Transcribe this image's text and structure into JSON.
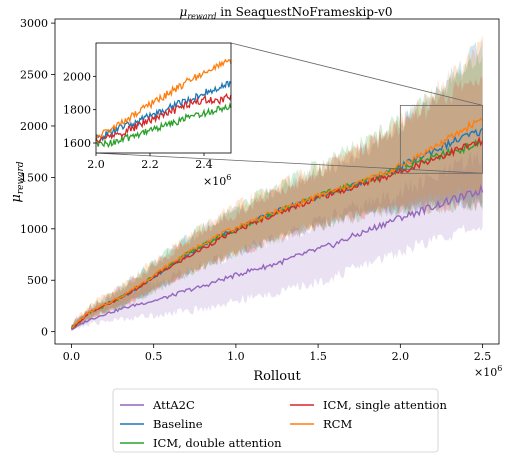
{
  "chart_data": {
    "type": "line",
    "title_symbol": "μ",
    "title_symbol_sub": "reward",
    "title_rest": " in SeaquestNoFrameskip-v0",
    "xlabel": "Rollout",
    "ylabel_symbol": "μ",
    "ylabel_sub": "reward",
    "x_multiplier_base": "×10",
    "x_multiplier_exp": "6",
    "xlim": [
      -0.1,
      2.6
    ],
    "ylim": [
      -120,
      3040
    ],
    "xticks": [
      0.0,
      0.5,
      1.0,
      1.5,
      2.0,
      2.5
    ],
    "xtick_labels": [
      "0.0",
      "0.5",
      "1.0",
      "1.5",
      "2.0",
      "2.5"
    ],
    "yticks": [
      0,
      500,
      1000,
      1500,
      2000,
      2500,
      3000
    ],
    "ytick_labels": [
      "0",
      "500",
      "1000",
      "1500",
      "2000",
      "2500",
      "3000"
    ],
    "grid": false,
    "legend_position": "below",
    "x": [
      0.0,
      0.1,
      0.2,
      0.3,
      0.4,
      0.5,
      0.6,
      0.7,
      0.8,
      0.9,
      1.0,
      1.1,
      1.2,
      1.3,
      1.4,
      1.5,
      1.6,
      1.7,
      1.8,
      1.9,
      2.0,
      2.1,
      2.2,
      2.3,
      2.4,
      2.5
    ],
    "series": [
      {
        "name": "AttA2C",
        "color": "#9467bd",
        "values": [
          20,
          110,
          170,
          220,
          265,
          300,
          345,
          400,
          440,
          500,
          550,
          600,
          640,
          690,
          750,
          800,
          850,
          920,
          980,
          1050,
          1110,
          1160,
          1220,
          1270,
          1320,
          1380
        ],
        "lower": [
          10,
          70,
          100,
          120,
          140,
          160,
          180,
          200,
          220,
          260,
          300,
          330,
          360,
          400,
          440,
          480,
          540,
          600,
          660,
          720,
          780,
          840,
          880,
          940,
          980,
          1020
        ],
        "upper": [
          40,
          190,
          260,
          330,
          400,
          470,
          520,
          580,
          640,
          700,
          760,
          820,
          880,
          940,
          1000,
          1060,
          1120,
          1180,
          1240,
          1300,
          1360,
          1420,
          1480,
          1560,
          1640,
          1720
        ]
      },
      {
        "name": "Baseline",
        "color": "#1f77b4",
        "values": [
          40,
          180,
          260,
          330,
          420,
          530,
          640,
          740,
          840,
          930,
          1000,
          1070,
          1140,
          1200,
          1260,
          1310,
          1360,
          1410,
          1460,
          1520,
          1600,
          1680,
          1760,
          1830,
          1900,
          1950
        ],
        "lower": [
          20,
          130,
          190,
          250,
          320,
          400,
          480,
          560,
          630,
          700,
          760,
          820,
          880,
          930,
          980,
          1030,
          1080,
          1120,
          1160,
          1180,
          1200,
          1210,
          1220,
          1230,
          1240,
          1250
        ],
        "upper": [
          70,
          240,
          330,
          430,
          540,
          660,
          780,
          900,
          1000,
          1100,
          1180,
          1260,
          1330,
          1400,
          1470,
          1540,
          1610,
          1680,
          1780,
          1900,
          2020,
          2150,
          2300,
          2460,
          2620,
          2800
        ]
      },
      {
        "name": "ICM, double attention",
        "color": "#2ca02c",
        "values": [
          30,
          170,
          250,
          330,
          430,
          540,
          650,
          750,
          840,
          920,
          990,
          1060,
          1130,
          1200,
          1260,
          1320,
          1370,
          1420,
          1470,
          1530,
          1590,
          1640,
          1690,
          1740,
          1790,
          1840
        ],
        "lower": [
          15,
          120,
          180,
          240,
          310,
          390,
          470,
          550,
          620,
          690,
          750,
          810,
          870,
          920,
          970,
          1020,
          1060,
          1100,
          1140,
          1170,
          1190,
          1200,
          1210,
          1220,
          1230,
          1240
        ],
        "upper": [
          60,
          230,
          320,
          430,
          550,
          670,
          790,
          900,
          1010,
          1110,
          1200,
          1290,
          1370,
          1450,
          1530,
          1610,
          1690,
          1770,
          1860,
          1960,
          2060,
          2170,
          2290,
          2410,
          2530,
          2640
        ]
      },
      {
        "name": "ICM, single attention",
        "color": "#d62728",
        "values": [
          30,
          170,
          250,
          330,
          420,
          530,
          630,
          720,
          810,
          900,
          980,
          1050,
          1120,
          1180,
          1240,
          1300,
          1350,
          1400,
          1450,
          1500,
          1560,
          1620,
          1680,
          1740,
          1800,
          1850
        ],
        "lower": [
          15,
          120,
          180,
          240,
          310,
          390,
          470,
          550,
          620,
          690,
          750,
          810,
          870,
          920,
          970,
          1020,
          1060,
          1100,
          1140,
          1170,
          1190,
          1200,
          1210,
          1220,
          1230,
          1240
        ],
        "upper": [
          60,
          230,
          320,
          420,
          530,
          650,
          760,
          870,
          970,
          1070,
          1160,
          1240,
          1320,
          1400,
          1480,
          1560,
          1640,
          1720,
          1810,
          1900,
          2000,
          2100,
          2200,
          2300,
          2400,
          2500
        ]
      },
      {
        "name": "RCM",
        "color": "#ff7f0e",
        "values": [
          40,
          180,
          260,
          340,
          440,
          550,
          660,
          760,
          860,
          940,
          1010,
          1080,
          1140,
          1200,
          1260,
          1320,
          1370,
          1420,
          1480,
          1540,
          1610,
          1700,
          1790,
          1880,
          1980,
          2080
        ],
        "lower": [
          20,
          130,
          190,
          250,
          330,
          410,
          490,
          570,
          640,
          710,
          770,
          830,
          890,
          940,
          990,
          1040,
          1090,
          1130,
          1170,
          1200,
          1230,
          1260,
          1290,
          1320,
          1350,
          1380
        ],
        "upper": [
          70,
          250,
          340,
          440,
          560,
          680,
          800,
          910,
          1020,
          1120,
          1210,
          1290,
          1370,
          1440,
          1510,
          1580,
          1650,
          1730,
          1820,
          1930,
          2050,
          2180,
          2330,
          2480,
          2650,
          2820
        ]
      }
    ],
    "inset": {
      "xlim": [
        2.0,
        2.5
      ],
      "ylim": [
        1540,
        2200
      ],
      "xticks": [
        2.0,
        2.2,
        2.4
      ],
      "xtick_labels": [
        "2.0",
        "2.2",
        "2.4"
      ],
      "yticks": [
        1600,
        1800,
        2000
      ],
      "ytick_labels": [
        "1600",
        "1800",
        "2000"
      ],
      "x_multiplier_base": "×10",
      "x_multiplier_exp": "6",
      "x": [
        2.0,
        2.05,
        2.1,
        2.15,
        2.2,
        2.25,
        2.3,
        2.35,
        2.4,
        2.45,
        2.5
      ],
      "series": [
        {
          "name": "Baseline",
          "color": "#1f77b4",
          "values": [
            1620,
            1660,
            1700,
            1720,
            1770,
            1790,
            1840,
            1860,
            1900,
            1920,
            1960
          ]
        },
        {
          "name": "ICM, double attention",
          "color": "#2ca02c",
          "values": [
            1590,
            1600,
            1620,
            1650,
            1680,
            1700,
            1730,
            1760,
            1780,
            1800,
            1830
          ]
        },
        {
          "name": "ICM, single attention",
          "color": "#d62728",
          "values": [
            1610,
            1640,
            1660,
            1700,
            1740,
            1770,
            1800,
            1840,
            1860,
            1850,
            1880
          ]
        },
        {
          "name": "RCM",
          "color": "#ff7f0e",
          "values": [
            1630,
            1680,
            1720,
            1780,
            1830,
            1880,
            1930,
            1980,
            2020,
            2060,
            2090
          ]
        }
      ]
    }
  }
}
